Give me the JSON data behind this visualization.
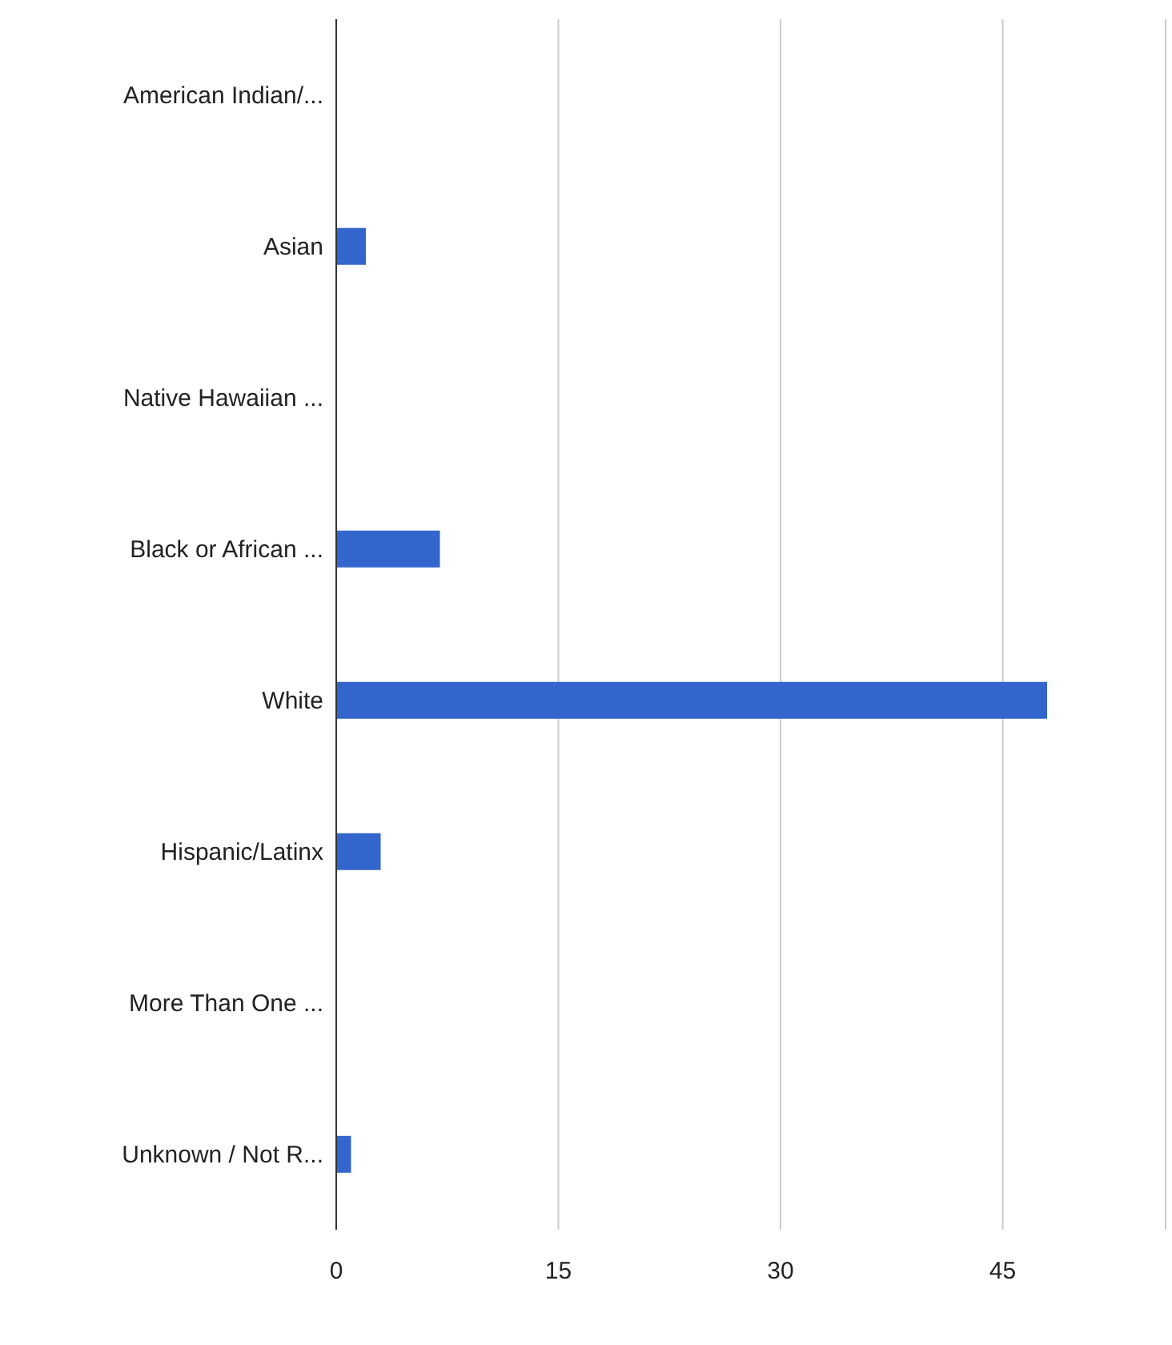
{
  "chart_data": {
    "type": "bar",
    "orientation": "horizontal",
    "categories": [
      "American Indian/...",
      "Asian",
      "Native Hawaiian ...",
      "Black or African ...",
      "White",
      "Hispanic/Latinx",
      "More Than One ...",
      "Unknown / Not R..."
    ],
    "values": [
      0,
      2,
      0,
      7,
      48,
      3,
      0,
      1
    ],
    "color": "#3366cc",
    "xlim": [
      0,
      56
    ],
    "xticks": [
      0,
      15,
      30,
      45
    ],
    "grid": "x"
  }
}
